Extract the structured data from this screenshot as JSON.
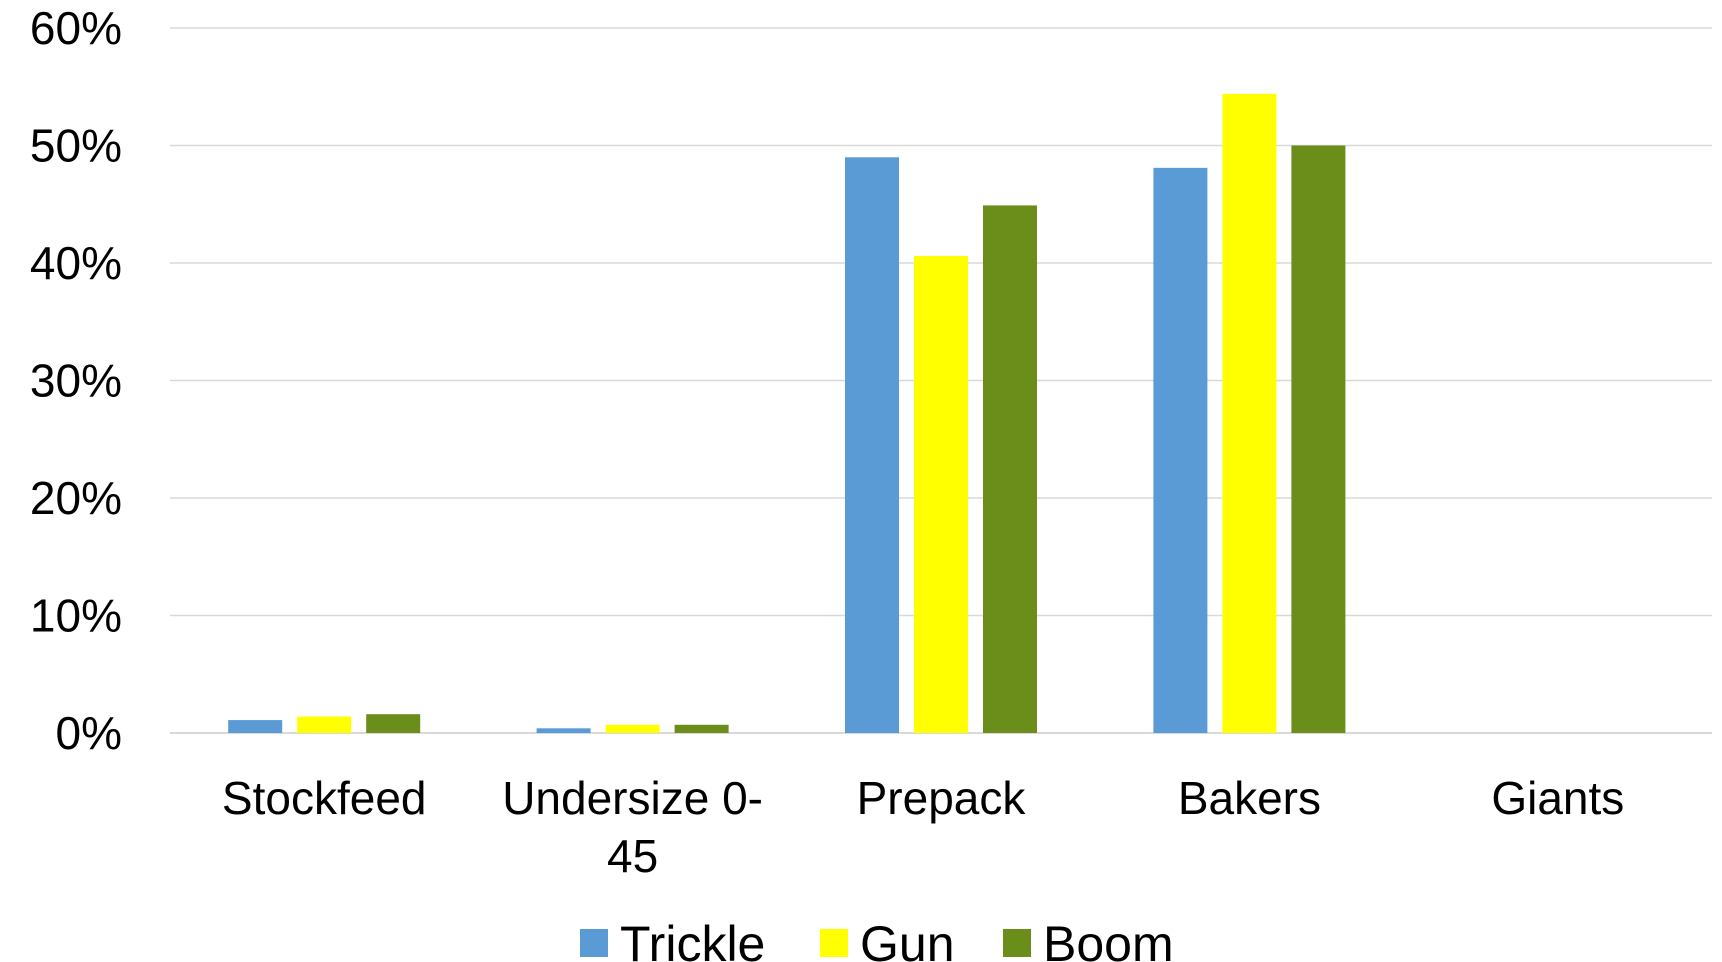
{
  "chart_data": {
    "type": "bar",
    "title": "",
    "xlabel": "",
    "ylabel": "",
    "categories": [
      [
        "Stockfeed"
      ],
      [
        "Undersize 0-",
        "45"
      ],
      [
        "Prepack"
      ],
      [
        "Bakers"
      ],
      [
        "Giants"
      ]
    ],
    "series": [
      {
        "name": "Trickle",
        "color": "#5b9bd5",
        "values": [
          1.1,
          0.4,
          49.0,
          48.1,
          0
        ]
      },
      {
        "name": "Gun",
        "color": "#ffff00",
        "values": [
          1.4,
          0.7,
          40.6,
          54.4,
          0
        ]
      },
      {
        "name": "Boom",
        "color": "#6b8e1a",
        "values": [
          1.6,
          0.7,
          44.9,
          50.0,
          0
        ]
      }
    ],
    "ylim": [
      0,
      60
    ],
    "yticks": [
      "0%",
      "10%",
      "20%",
      "30%",
      "40%",
      "50%",
      "60%"
    ],
    "grid": true,
    "legend_position": "bottom"
  }
}
